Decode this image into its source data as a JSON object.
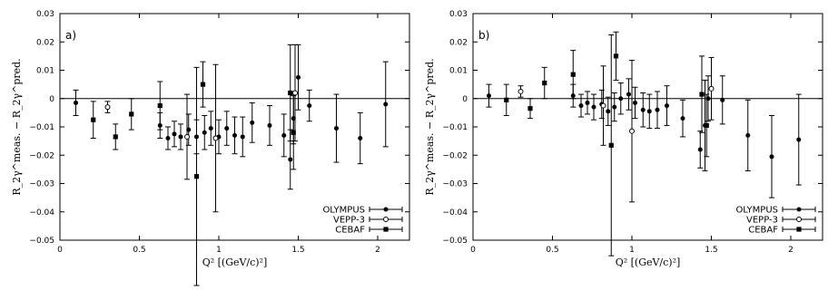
{
  "chart_data": [
    {
      "type": "scatter",
      "panel_label": "a)",
      "xlabel": "Q² [(GeV/c)²]",
      "ylabel": "R_2γ^meas. − R_2γ^pred.",
      "xlim": [
        0,
        2.2
      ],
      "ylim": [
        -0.05,
        0.03
      ],
      "xticks": [
        0,
        0.5,
        1,
        1.5,
        2
      ],
      "xtick_labels": [
        "0",
        "0.5",
        "1",
        "1.5",
        "2"
      ],
      "yticks": [
        -0.05,
        -0.04,
        -0.03,
        -0.02,
        -0.01,
        0,
        0.01,
        0.02,
        0.03
      ],
      "ytick_labels": [
        "−0.05",
        "−0.04",
        "−0.03",
        "−0.02",
        "−0.01",
        "0",
        "0.01",
        "0.02",
        "0.03"
      ],
      "zero_line": true,
      "legend_position": "bottom-right",
      "series": [
        {
          "name": "OLYMPUS",
          "marker": "filled-circle",
          "x": [
            0.1,
            0.63,
            0.68,
            0.72,
            0.76,
            0.81,
            0.86,
            0.91,
            0.95,
            1.0,
            1.05,
            1.1,
            1.15,
            1.21,
            1.32,
            1.41,
            1.45,
            1.47,
            1.5,
            1.57,
            1.74,
            1.89,
            2.05
          ],
          "y": [
            -0.0015,
            -0.0095,
            -0.014,
            -0.0125,
            -0.0135,
            -0.011,
            -0.0135,
            -0.012,
            -0.0105,
            -0.0135,
            -0.0105,
            -0.013,
            -0.0135,
            -0.0085,
            -0.0095,
            -0.013,
            -0.0215,
            -0.007,
            0.0075,
            -0.0025,
            -0.0105,
            -0.014,
            -0.002
          ],
          "err": [
            0.0045,
            0.0045,
            0.004,
            0.0045,
            0.0045,
            0.0055,
            0.006,
            0.006,
            0.006,
            0.006,
            0.006,
            0.0065,
            0.007,
            0.007,
            0.007,
            0.0075,
            0.0105,
            0.009,
            0.0115,
            0.0055,
            0.012,
            0.009,
            0.015
          ]
        },
        {
          "name": "VEPP-3",
          "marker": "open-circle",
          "x": [
            0.3,
            0.8,
            0.98,
            1.48
          ],
          "y": [
            -0.003,
            -0.0135,
            -0.014,
            0.002
          ],
          "err": [
            0.002,
            0.015,
            0.026,
            0.017
          ]
        },
        {
          "name": "CEBAF",
          "marker": "filled-square",
          "x": [
            0.21,
            0.35,
            0.45,
            0.63,
            0.86,
            0.9,
            1.45,
            1.47
          ],
          "y": [
            -0.0075,
            -0.0135,
            -0.0055,
            -0.0025,
            -0.0275,
            0.005,
            0.002,
            -0.012
          ],
          "err": [
            0.0065,
            0.0045,
            0.0055,
            0.0085,
            0.0385,
            0.008,
            0.017,
            0.013
          ]
        }
      ]
    },
    {
      "type": "scatter",
      "panel_label": "b)",
      "xlabel": "Q² [(GeV/c)²]",
      "ylabel": "R_2γ^meas. − R_2γ^pred.",
      "xlim": [
        0,
        2.2
      ],
      "ylim": [
        -0.05,
        0.03
      ],
      "xticks": [
        0,
        0.5,
        1,
        1.5,
        2
      ],
      "xtick_labels": [
        "0",
        "0.5",
        "1",
        "1.5",
        "2"
      ],
      "yticks": [
        -0.05,
        -0.04,
        -0.03,
        -0.02,
        -0.01,
        0,
        0.01,
        0.02,
        0.03
      ],
      "ytick_labels": [
        "−0.05",
        "−0.04",
        "−0.03",
        "−0.02",
        "−0.01",
        "0",
        "0.01",
        "0.02",
        "0.03"
      ],
      "zero_line": true,
      "legend_position": "bottom-right",
      "series": [
        {
          "name": "OLYMPUS",
          "marker": "filled-circle",
          "x": [
            0.1,
            0.63,
            0.68,
            0.72,
            0.76,
            0.81,
            0.85,
            0.89,
            0.93,
            0.98,
            1.02,
            1.07,
            1.11,
            1.16,
            1.22,
            1.32,
            1.43,
            1.46,
            1.48,
            1.57,
            1.73,
            1.88,
            2.05
          ],
          "y": [
            0.001,
            0.001,
            -0.0025,
            -0.0015,
            -0.003,
            -0.002,
            -0.0045,
            -0.003,
            0.0,
            0.0015,
            -0.0015,
            -0.004,
            -0.0045,
            -0.004,
            -0.0025,
            -0.007,
            -0.018,
            -0.0095,
            0.0,
            -0.0005,
            -0.013,
            -0.0205,
            -0.0145
          ],
          "err": [
            0.004,
            0.004,
            0.004,
            0.004,
            0.0045,
            0.005,
            0.005,
            0.005,
            0.0055,
            0.0055,
            0.0055,
            0.006,
            0.006,
            0.0065,
            0.007,
            0.0065,
            0.0065,
            0.016,
            0.008,
            0.0085,
            0.0125,
            0.0145,
            0.016
          ]
        },
        {
          "name": "VEPP-3",
          "marker": "open-circle",
          "x": [
            0.3,
            0.82,
            1.0,
            1.5
          ],
          "y": [
            0.0025,
            -0.0025,
            -0.0115,
            0.0035
          ],
          "err": [
            0.002,
            0.014,
            0.025,
            0.011
          ]
        },
        {
          "name": "CEBAF",
          "marker": "filled-square",
          "x": [
            0.21,
            0.36,
            0.45,
            0.63,
            0.87,
            0.9,
            1.44,
            1.47
          ],
          "y": [
            -0.0005,
            -0.0035,
            0.0055,
            0.0085,
            -0.0165,
            0.015,
            0.0015,
            -0.0095
          ],
          "err": [
            0.0055,
            0.0035,
            0.0055,
            0.0085,
            0.039,
            0.0085,
            0.0135,
            0.011
          ]
        }
      ]
    }
  ]
}
